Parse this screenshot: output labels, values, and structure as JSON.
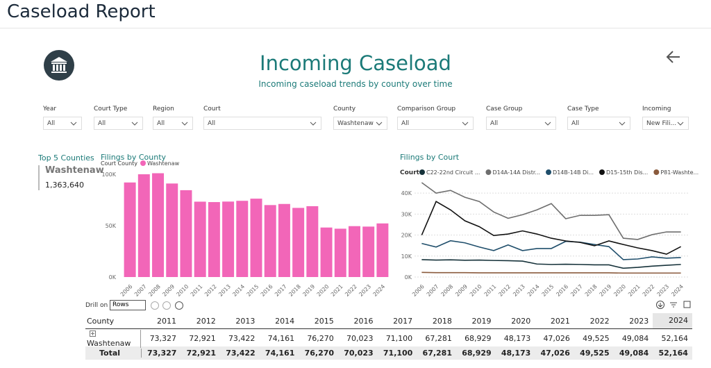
{
  "header": {
    "title": "Caseload Report"
  },
  "page": {
    "title": "Incoming Caseload",
    "subtitle": "Incoming caseload trends by county over time"
  },
  "filters": [
    {
      "label": "Year",
      "value": "All"
    },
    {
      "label": "Court Type",
      "value": "All"
    },
    {
      "label": "Region",
      "value": "All"
    },
    {
      "label": "Court",
      "value": "All"
    },
    {
      "label": "County",
      "value": "Washtenaw"
    },
    {
      "label": "Comparison Group",
      "value": "All"
    },
    {
      "label": "Case Group",
      "value": "All"
    },
    {
      "label": "Case Type",
      "value": "All"
    },
    {
      "label": "Incoming",
      "value": "New Fili..."
    }
  ],
  "top_counties": {
    "title": "Top 5 Counties",
    "county": "Washtenaw",
    "value": "1,363,640"
  },
  "chart_data": [
    {
      "type": "bar",
      "title": "Filings by County",
      "legend_title": "Court County",
      "categories": [
        "2006",
        "2007",
        "2008",
        "2009",
        "2010",
        "2011",
        "2012",
        "2013",
        "2014",
        "2015",
        "2016",
        "2017",
        "2018",
        "2019",
        "2020",
        "2021",
        "2022",
        "2023",
        "2024"
      ],
      "series": [
        {
          "name": "Washtenaw",
          "color": "#f266b8",
          "values": [
            92000,
            100000,
            101000,
            91000,
            84500,
            73327,
            72921,
            73422,
            74161,
            76270,
            70023,
            71100,
            67281,
            68929,
            48173,
            47026,
            49525,
            49084,
            52164
          ]
        }
      ],
      "ylim": [
        0,
        102000
      ],
      "yticks": [
        {
          "value": 0,
          "label": "0K"
        },
        {
          "value": 50000,
          "label": "50K"
        },
        {
          "value": 100000,
          "label": "100K"
        }
      ],
      "grid": false
    },
    {
      "type": "line",
      "title": "Filings by Court",
      "legend_title": "Court",
      "categories": [
        "2006",
        "2007",
        "2008",
        "2009",
        "2010",
        "2011",
        "2012",
        "2013",
        "2014",
        "2015",
        "2016",
        "2017",
        "2018",
        "2019",
        "2020",
        "2021",
        "2022",
        "2023",
        "2024"
      ],
      "series": [
        {
          "name": "C22-22nd Circuit ...",
          "color": "#16323a",
          "values": [
            8300,
            8100,
            8200,
            8000,
            8100,
            7900,
            7800,
            7600,
            6200,
            6000,
            6100,
            6000,
            5800,
            5800,
            4200,
            4600,
            5200,
            5600,
            6000
          ]
        },
        {
          "name": "D14A-14A Distr...",
          "color": "#6e6e6e",
          "values": [
            45000,
            40000,
            41300,
            38000,
            36000,
            31000,
            28000,
            29700,
            32000,
            35000,
            27800,
            29400,
            29400,
            29700,
            18500,
            17900,
            20200,
            21500,
            21500
          ]
        },
        {
          "name": "D14B-14B Di...",
          "color": "#1f4e6b",
          "values": [
            16000,
            14300,
            17300,
            16300,
            14300,
            12600,
            15300,
            12600,
            13600,
            13600,
            17000,
            16600,
            15500,
            14500,
            8300,
            8600,
            9600,
            9000,
            9300
          ]
        },
        {
          "name": "D15-15th Dis...",
          "color": "#111111",
          "values": [
            20000,
            36000,
            32000,
            26800,
            24000,
            19800,
            20500,
            22000,
            20500,
            18500,
            17200,
            16500,
            14900,
            17200,
            15500,
            13900,
            12600,
            10900,
            14500
          ]
        },
        {
          "name": "P81-Washte...",
          "color": "#8a5a3c",
          "values": [
            2200,
            2100,
            2100,
            2100,
            2000,
            2000,
            2000,
            2000,
            2000,
            2000,
            2000,
            2000,
            2000,
            2000,
            1900,
            1900,
            1900,
            1900,
            1900
          ]
        }
      ],
      "ylim": [
        0,
        45000
      ],
      "yticks": [
        {
          "value": 0,
          "label": "0K"
        },
        {
          "value": 10000,
          "label": "10K"
        },
        {
          "value": 20000,
          "label": "20K"
        },
        {
          "value": 30000,
          "label": "30K"
        },
        {
          "value": 40000,
          "label": "40K"
        }
      ],
      "grid": true
    }
  ],
  "table": {
    "drill_label": "Drill on",
    "drill_value": "Rows",
    "columns": [
      "County",
      "2011",
      "2012",
      "2013",
      "2014",
      "2015",
      "2016",
      "2017",
      "2018",
      "2019",
      "2020",
      "2021",
      "2022",
      "2023",
      "2024"
    ],
    "rows": [
      [
        "Washtenaw",
        "73,327",
        "72,921",
        "73,422",
        "74,161",
        "76,270",
        "70,023",
        "71,100",
        "67,281",
        "68,929",
        "48,173",
        "47,026",
        "49,525",
        "49,084",
        "52,164"
      ],
      [
        "Total",
        "73,327",
        "72,921",
        "73,422",
        "74,161",
        "76,270",
        "70,023",
        "71,100",
        "67,281",
        "68,929",
        "48,173",
        "47,026",
        "49,525",
        "49,084",
        "52,164"
      ]
    ]
  }
}
